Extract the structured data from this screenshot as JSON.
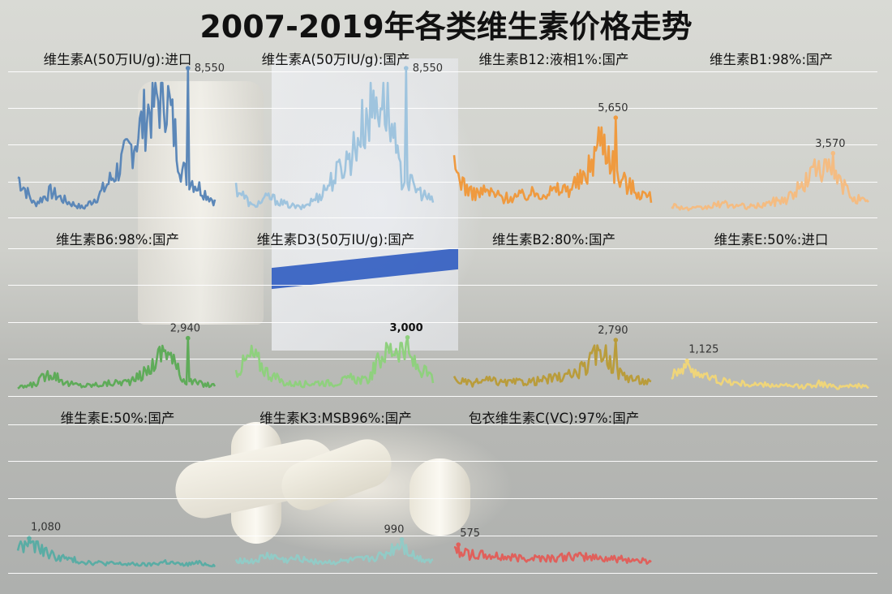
{
  "title": "2007-2019年各类维生素价格走势",
  "chart_data": [
    {
      "type": "line",
      "title": "维生素A(50万IU/g):进口",
      "peak_label": "8,550",
      "peak": 8550,
      "color": "#5b87b8",
      "x_range": [
        "2007",
        "2019"
      ],
      "start": 160,
      "pattern": [
        0.3,
        0.08,
        0.18,
        0.1,
        0.05,
        0.16,
        0.34,
        0.56,
        0.85,
        1.0,
        0.35,
        0.22,
        0.1
      ],
      "peak_pos": 0.86
    },
    {
      "type": "line",
      "title": "维生素A(50万IU/g):国产",
      "peak_label": "8,550",
      "peak": 8550,
      "color": "#9fc4de",
      "x_range": [
        "2007",
        "2019"
      ],
      "start": 160,
      "pattern": [
        0.22,
        0.06,
        0.14,
        0.08,
        0.05,
        0.14,
        0.3,
        0.48,
        0.8,
        1.0,
        0.32,
        0.2,
        0.1
      ],
      "peak_pos": 0.86
    },
    {
      "type": "line",
      "title": "维生素B12:液相1%:国产",
      "peak_label": "5,650",
      "peak": 5650,
      "color": "#ef9a3f",
      "x_range": [
        "2007",
        "2019"
      ],
      "start": 2300,
      "pattern": [
        0.55,
        0.25,
        0.28,
        0.2,
        0.22,
        0.26,
        0.28,
        0.32,
        0.45,
        1.0,
        0.45,
        0.3,
        0.2
      ],
      "peak_pos": 0.82
    },
    {
      "type": "line",
      "title": "维生素B1:98%:国产",
      "peak_label": "3,570",
      "peak": 3570,
      "color": "#f4bc82",
      "x_range": [
        "2007",
        "2019"
      ],
      "start": 2300,
      "pattern": [
        0.18,
        0.1,
        0.12,
        0.2,
        0.16,
        0.14,
        0.22,
        0.3,
        0.55,
        1.0,
        0.7,
        0.35,
        0.2
      ],
      "peak_pos": 0.82
    },
    {
      "type": "line",
      "title": "维生素B6:98%:国产",
      "peak_label": "2,940",
      "peak": 2940,
      "color": "#5fab59",
      "x_range": [
        "2007",
        "2019"
      ],
      "start": 150,
      "pattern": [
        0.1,
        0.18,
        0.45,
        0.2,
        0.15,
        0.18,
        0.22,
        0.25,
        0.5,
        1.0,
        0.3,
        0.2,
        0.15
      ],
      "peak_pos": 0.86
    },
    {
      "type": "line",
      "title": "维生素D3(50万IU/g):国产",
      "peak_label": "3,000",
      "peak": 3000,
      "color": "#8fd07e",
      "x_range": [
        "2007",
        "2019"
      ],
      "start": 450,
      "pattern": [
        0.45,
        0.8,
        0.4,
        0.2,
        0.18,
        0.22,
        0.2,
        0.3,
        0.25,
        0.85,
        1.0,
        0.55,
        0.3
      ],
      "peak_pos": 0.87
    },
    {
      "type": "line",
      "title": "维生素B2:80%:国产",
      "peak_label": "2,790",
      "peak": 2790,
      "color": "#b99c3b",
      "x_range": [
        "2007",
        "2019"
      ],
      "start": 150,
      "pattern": [
        0.3,
        0.2,
        0.28,
        0.22,
        0.24,
        0.26,
        0.32,
        0.38,
        0.55,
        1.0,
        0.45,
        0.3,
        0.22
      ],
      "peak_pos": 0.82
    },
    {
      "type": "line",
      "title": "维生素E:50%:进口",
      "peak_label": "1,125",
      "peak": 1125,
      "color": "#efd57a",
      "x_range": [
        "2007",
        "2019"
      ],
      "start": 700,
      "pattern": [
        0.75,
        1.0,
        0.6,
        0.45,
        0.35,
        0.3,
        0.28,
        0.25,
        0.22,
        0.35,
        0.2,
        0.3,
        0.18
      ],
      "peak_pos": 0.08
    },
    {
      "type": "line",
      "title": "维生素E:50%:国产",
      "peak_label": "1,080",
      "peak": 1080,
      "color": "#5aaca4",
      "x_range": [
        "2007",
        "2019"
      ],
      "start": 700,
      "pattern": [
        0.85,
        1.0,
        0.55,
        0.4,
        0.3,
        0.25,
        0.22,
        0.2,
        0.18,
        0.3,
        0.18,
        0.25,
        0.16
      ],
      "peak_pos": 0.06
    },
    {
      "type": "line",
      "title": "维生素K3:MSB96%:国产",
      "peak_label": "990",
      "peak": 990,
      "color": "#92cbc6",
      "x_range": [
        "2007",
        "2019"
      ],
      "start": 300,
      "pattern": [
        0.4,
        0.3,
        0.55,
        0.35,
        0.45,
        0.3,
        0.28,
        0.35,
        0.4,
        0.55,
        1.0,
        0.45,
        0.35
      ],
      "peak_pos": 0.84
    },
    {
      "type": "line",
      "title": "包衣维生素C(VC):97%:国产",
      "peak_label": "575",
      "peak": 575,
      "color": "#e0605b",
      "x_range": [
        "2007",
        "2019"
      ],
      "start": 300,
      "pattern": [
        1.0,
        0.7,
        0.65,
        0.6,
        0.55,
        0.58,
        0.55,
        0.6,
        0.62,
        0.55,
        0.5,
        0.45,
        0.4
      ],
      "peak_pos": 0.02
    }
  ]
}
